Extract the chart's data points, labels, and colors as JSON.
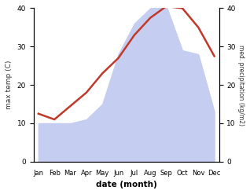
{
  "months": [
    "Jan",
    "Feb",
    "Mar",
    "Apr",
    "May",
    "Jun",
    "Jul",
    "Aug",
    "Sep",
    "Oct",
    "Nov",
    "Dec"
  ],
  "temp": [
    12.5,
    11.0,
    14.5,
    18.0,
    23.0,
    27.0,
    33.0,
    37.5,
    40.5,
    40.0,
    35.0,
    27.5
  ],
  "precip": [
    10.0,
    10.0,
    10.0,
    11.0,
    15.0,
    28.0,
    36.0,
    40.0,
    40.5,
    29.0,
    28.0,
    13.0
  ],
  "temp_color": "#c0392b",
  "precip_fill_color": "#c5cef0",
  "ylabel_left": "max temp (C)",
  "ylabel_right": "med. precipitation (kg/m2)",
  "xlabel": "date (month)",
  "ylim_left": [
    0,
    40
  ],
  "ylim_right": [
    0,
    40
  ],
  "title": ""
}
